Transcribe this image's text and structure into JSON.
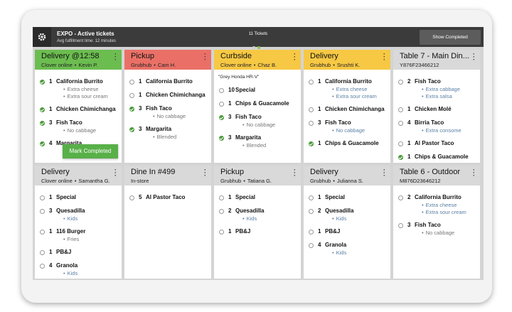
{
  "header": {
    "title": "EXPO - Active tickets",
    "subtitle": "Avg fulfillment time: 12 minutes",
    "count": "11 Tickets",
    "button": "Show Completed"
  },
  "tickets": [
    {
      "title": "Delivery @12:58",
      "source": "Clover online",
      "customer": "Kevin P.",
      "color": "#6cbd50",
      "action": "Mark Completed",
      "items": [
        {
          "qty": 1,
          "name": "California Burrito",
          "done": true,
          "mods": [
            "Extra cheese",
            "Extra sour cream"
          ],
          "mod_color": "#777777"
        },
        {
          "qty": 1,
          "name": "Chicken Chimichanga",
          "done": true
        },
        {
          "qty": 3,
          "name": "Fish Taco",
          "done": true,
          "mods": [
            "No cabbage"
          ],
          "mod_color": "#777777"
        },
        {
          "qty": 4,
          "name": "Margarita",
          "done": true
        }
      ]
    },
    {
      "title": "Pickup",
      "source": "Grubhub",
      "customer": "Cam H.",
      "color": "#ea7067",
      "items": [
        {
          "qty": 1,
          "name": "California Burrito",
          "done": false
        },
        {
          "qty": 1,
          "name": "Chicken Chimichanga",
          "done": false
        },
        {
          "qty": 3,
          "name": "Fish Taco",
          "done": true,
          "mods": [
            "No cabbage"
          ],
          "mod_color": "#777777"
        },
        {
          "qty": 3,
          "name": "Margarita",
          "done": true,
          "mods": [
            "Blended"
          ],
          "mod_color": "#777777"
        }
      ]
    },
    {
      "title": "Curbside",
      "source": "Clover online",
      "customer": "Chaz B.",
      "color": "#f6c844",
      "note": "\"Grey Honda HR-V\"",
      "items": [
        {
          "qty": 10,
          "name": "Special",
          "done": false
        },
        {
          "qty": 1,
          "name": "Chips & Guacamole",
          "done": false
        },
        {
          "qty": 3,
          "name": "Fish Taco",
          "done": true,
          "mods": [
            "No cabbage"
          ],
          "mod_color": "#777777"
        },
        {
          "qty": 3,
          "name": "Margarita",
          "done": true,
          "mods": [
            "Blended"
          ],
          "mod_color": "#777777"
        }
      ]
    },
    {
      "title": "Delivery",
      "source": "Grubhub",
      "customer": "Srushti K.",
      "color": "#f6c844",
      "items": [
        {
          "qty": 1,
          "name": "California Burrito",
          "done": false,
          "mods": [
            "Extra cheese",
            "Extra sour cream"
          ],
          "mod_color": "#5b7fa6"
        },
        {
          "qty": 1,
          "name": "Chicken Chimichanga",
          "done": false
        },
        {
          "qty": 3,
          "name": "Fish Taco",
          "done": false,
          "mods": [
            "No cabbage"
          ],
          "mod_color": "#5b7fa6"
        },
        {
          "qty": 1,
          "name": "Chips & Guacamole",
          "done": true
        }
      ]
    },
    {
      "title": "Table 7 - Main Din...",
      "source": "Y876F23466212",
      "color": "#d9d9d9",
      "items": [
        {
          "qty": 2,
          "name": "Fish Taco",
          "done": false,
          "mods": [
            "Extra cabbage",
            "Extra salsa"
          ],
          "mod_color": "#5b7fa6"
        },
        {
          "qty": 1,
          "name": "Chicken Molé",
          "done": false
        },
        {
          "qty": 4,
          "name": "Birria Taco",
          "done": false,
          "mods": [
            "Extra consome"
          ],
          "mod_color": "#5b7fa6"
        },
        {
          "qty": 1,
          "name": "Al Pastor Taco",
          "done": false
        },
        {
          "qty": 1,
          "name": "Chips & Guacamole",
          "done": true
        }
      ]
    },
    {
      "title": "Delivery",
      "source": "Clover online",
      "customer": "Samantha G.",
      "color": "#d9d9d9",
      "items": [
        {
          "qty": 1,
          "name": "Special",
          "done": false
        },
        {
          "qty": 3,
          "name": "Quesadilla",
          "done": false,
          "mods": [
            "Kids"
          ],
          "mod_color": "#5b7fa6"
        },
        {
          "qty": 1,
          "name": "116 Burger",
          "done": false,
          "mods": [
            "Fries"
          ],
          "mod_color": "#777777"
        },
        {
          "qty": 1,
          "name": "PB&J",
          "done": false
        },
        {
          "qty": 4,
          "name": "Granola",
          "done": false,
          "mods": [
            "Kids"
          ],
          "mod_color": "#5b7fa6"
        }
      ]
    },
    {
      "title": "Dine In #499",
      "source": "In-store",
      "color": "#d9d9d9",
      "items": [
        {
          "qty": 5,
          "name": "Al Pastor Taco",
          "done": false
        }
      ]
    },
    {
      "title": "Pickup",
      "source": "Grubhub",
      "customer": "Tatiana G.",
      "color": "#d9d9d9",
      "items": [
        {
          "qty": 1,
          "name": "Special",
          "done": false
        },
        {
          "qty": 2,
          "name": "Quesadilla",
          "done": false,
          "mods": [
            "Kids"
          ],
          "mod_color": "#5b7fa6"
        },
        {
          "qty": 1,
          "name": "PB&J",
          "done": false
        }
      ]
    },
    {
      "title": "Delivery",
      "source": "Grubhub",
      "customer": "Julianna S.",
      "color": "#d9d9d9",
      "items": [
        {
          "qty": 1,
          "name": "Special",
          "done": false
        },
        {
          "qty": 2,
          "name": "Quesadilla",
          "done": false,
          "mods": [
            "Kids"
          ],
          "mod_color": "#5b7fa6"
        },
        {
          "qty": 1,
          "name": "PB&J",
          "done": false
        },
        {
          "qty": 4,
          "name": "Granola",
          "done": false,
          "mods": [
            "Kids"
          ],
          "mod_color": "#5b7fa6"
        }
      ]
    },
    {
      "title": "Table 6 - Outdoor",
      "source": "M876D23646212",
      "color": "#d9d9d9",
      "items": [
        {
          "qty": 2,
          "name": "California Burrito",
          "done": false,
          "mods": [
            "Extra cheese",
            "Extra sour cream"
          ],
          "mod_color": "#5b7fa6"
        },
        {
          "qty": 3,
          "name": "Fish Taco",
          "done": false,
          "mods": [
            "No cabbage"
          ],
          "mod_color": "#777777"
        }
      ]
    }
  ]
}
